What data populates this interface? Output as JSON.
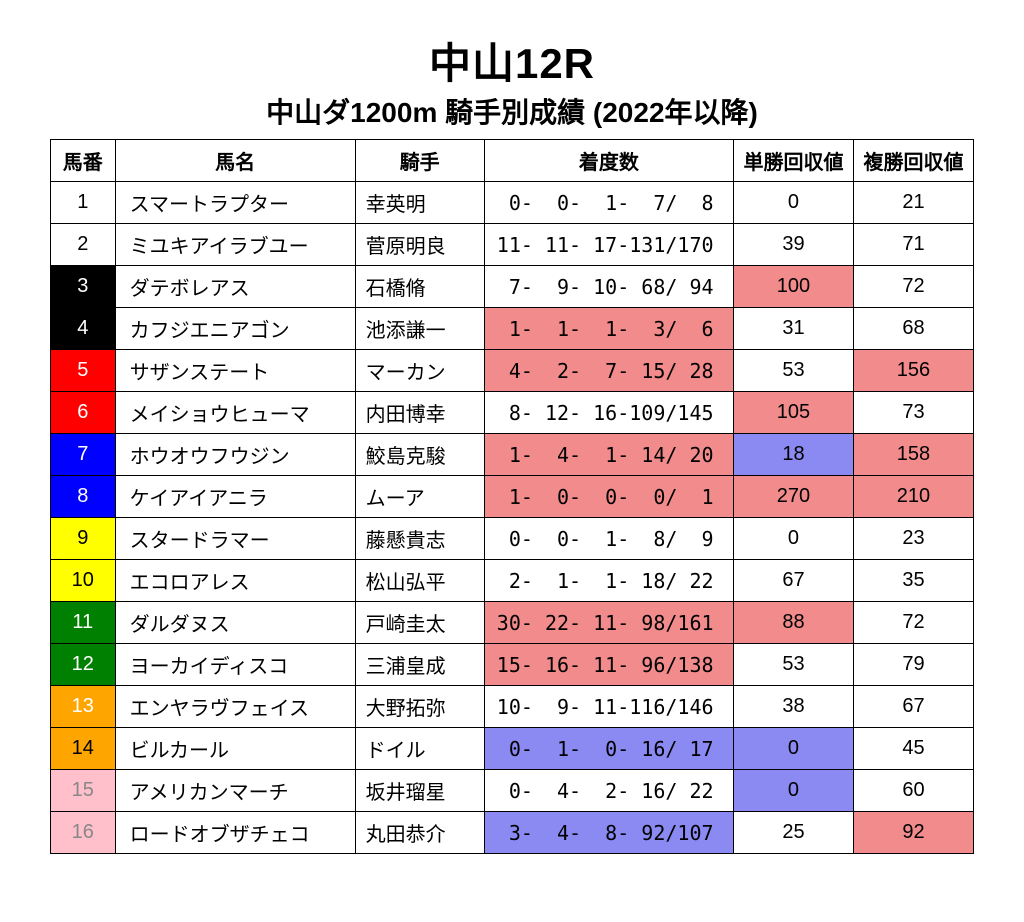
{
  "title": "中山12R",
  "subtitle": "中山ダ1200m 騎手別成績 (2022年以降)",
  "colors": {
    "highlight_red": "#f28b8b",
    "highlight_blue": "#8a8af2",
    "frame_white": "#ffffff",
    "frame_black": "#000000",
    "frame_red": "#ff0000",
    "frame_blue": "#0000ff",
    "frame_yellow": "#ffff00",
    "frame_green": "#008000",
    "frame_orange": "#ffa500",
    "frame_pink": "#ffc0cb",
    "text_black": "#000000",
    "text_white": "#ffffff",
    "text_gray": "#888888"
  },
  "columns": [
    "馬番",
    "馬名",
    "騎手",
    "着度数",
    "単勝回収値",
    "複勝回収値"
  ],
  "rows": [
    {
      "num": "1",
      "frame": "white",
      "horse": "スマートラプター",
      "jockey": "幸英明",
      "record": " 0-  0-  1-  7/  8",
      "win": "0",
      "place": "21"
    },
    {
      "num": "2",
      "frame": "white",
      "horse": "ミユキアイラブユー",
      "jockey": "菅原明良",
      "record": "11- 11- 17-131/170",
      "win": "39",
      "place": "71"
    },
    {
      "num": "3",
      "frame": "black",
      "horse": "ダテボレアス",
      "jockey": "石橋脩",
      "record": " 7-  9- 10- 68/ 94",
      "win": "100",
      "win_hl": "red",
      "place": "72"
    },
    {
      "num": "4",
      "frame": "black",
      "horse": "カフジエニアゴン",
      "jockey": "池添謙一",
      "record": " 1-  1-  1-  3/  6",
      "record_hl": "red",
      "win": "31",
      "place": "68"
    },
    {
      "num": "5",
      "frame": "red",
      "horse": "サザンステート",
      "jockey": "マーカン",
      "record": " 4-  2-  7- 15/ 28",
      "record_hl": "red",
      "win": "53",
      "place": "156",
      "place_hl": "red"
    },
    {
      "num": "6",
      "frame": "red",
      "horse": "メイショウヒューマ",
      "jockey": "内田博幸",
      "record": " 8- 12- 16-109/145",
      "win": "105",
      "win_hl": "red",
      "place": "73"
    },
    {
      "num": "7",
      "frame": "blue",
      "horse": "ホウオウフウジン",
      "jockey": "鮫島克駿",
      "record": " 1-  4-  1- 14/ 20",
      "record_hl": "red",
      "win": "18",
      "win_hl": "blue",
      "place": "158",
      "place_hl": "red"
    },
    {
      "num": "8",
      "frame": "blue",
      "horse": "ケイアイアニラ",
      "jockey": "ムーア",
      "record": " 1-  0-  0-  0/  1",
      "record_hl": "red",
      "win": "270",
      "win_hl": "red",
      "place": "210",
      "place_hl": "red"
    },
    {
      "num": "9",
      "frame": "yellow",
      "horse": "スタードラマー",
      "jockey": "藤懸貴志",
      "record": " 0-  0-  1-  8/  9",
      "win": "0",
      "place": "23"
    },
    {
      "num": "10",
      "frame": "yellow",
      "horse": "エコロアレス",
      "jockey": "松山弘平",
      "record": " 2-  1-  1- 18/ 22",
      "win": "67",
      "place": "35"
    },
    {
      "num": "11",
      "frame": "green",
      "horse": "ダルダヌス",
      "jockey": "戸崎圭太",
      "record": "30- 22- 11- 98/161",
      "record_hl": "red",
      "win": "88",
      "win_hl": "red",
      "place": "72"
    },
    {
      "num": "12",
      "frame": "green",
      "horse": "ヨーカイディスコ",
      "jockey": "三浦皇成",
      "record": "15- 16- 11- 96/138",
      "record_hl": "red",
      "win": "53",
      "place": "79"
    },
    {
      "num": "13",
      "frame": "orange",
      "num_text": "white",
      "horse": "エンヤラヴフェイス",
      "jockey": "大野拓弥",
      "record": "10-  9- 11-116/146",
      "win": "38",
      "place": "67"
    },
    {
      "num": "14",
      "frame": "orange",
      "horse": "ビルカール",
      "jockey": "ドイル",
      "record": " 0-  1-  0- 16/ 17",
      "record_hl": "blue",
      "win": "0",
      "win_hl": "blue",
      "place": "45"
    },
    {
      "num": "15",
      "frame": "pink",
      "num_text": "gray",
      "horse": "アメリカンマーチ",
      "jockey": "坂井瑠星",
      "record": " 0-  4-  2- 16/ 22",
      "win": "0",
      "win_hl": "blue",
      "place": "60"
    },
    {
      "num": "16",
      "frame": "pink",
      "num_text": "gray",
      "horse": "ロードオブザチェコ",
      "jockey": "丸田恭介",
      "record": " 3-  4-  8- 92/107",
      "record_hl": "blue",
      "win": "25",
      "place": "92",
      "place_hl": "red"
    }
  ]
}
